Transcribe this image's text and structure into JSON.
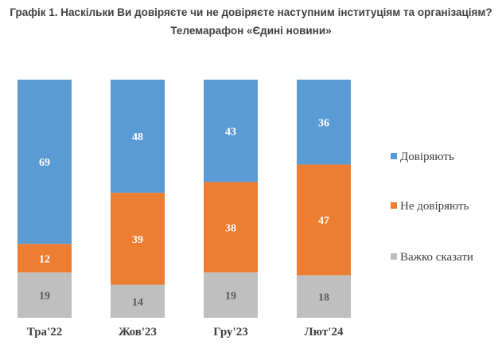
{
  "title": "Графік 1. Наскільки Ви довіряєте чи не довіряєте наступним інституціям та організаціям?",
  "subtitle": "Телемарафон «Єдині новини»",
  "chart_data": {
    "type": "bar",
    "stacked": true,
    "percent_stacked": true,
    "categories": [
      "Тра'22",
      "Жов'23",
      "Гру'23",
      "Лют'24"
    ],
    "series": [
      {
        "name": "Довіряють",
        "values": [
          69,
          48,
          43,
          36
        ],
        "color": "#5B9BD5"
      },
      {
        "name": "Не довіряють",
        "values": [
          12,
          39,
          38,
          47
        ],
        "color": "#ED7D31"
      },
      {
        "name": "Важко сказати",
        "values": [
          19,
          14,
          19,
          18
        ],
        "color": "#BFBFBF"
      }
    ],
    "legend_position": "right",
    "grid": false
  }
}
